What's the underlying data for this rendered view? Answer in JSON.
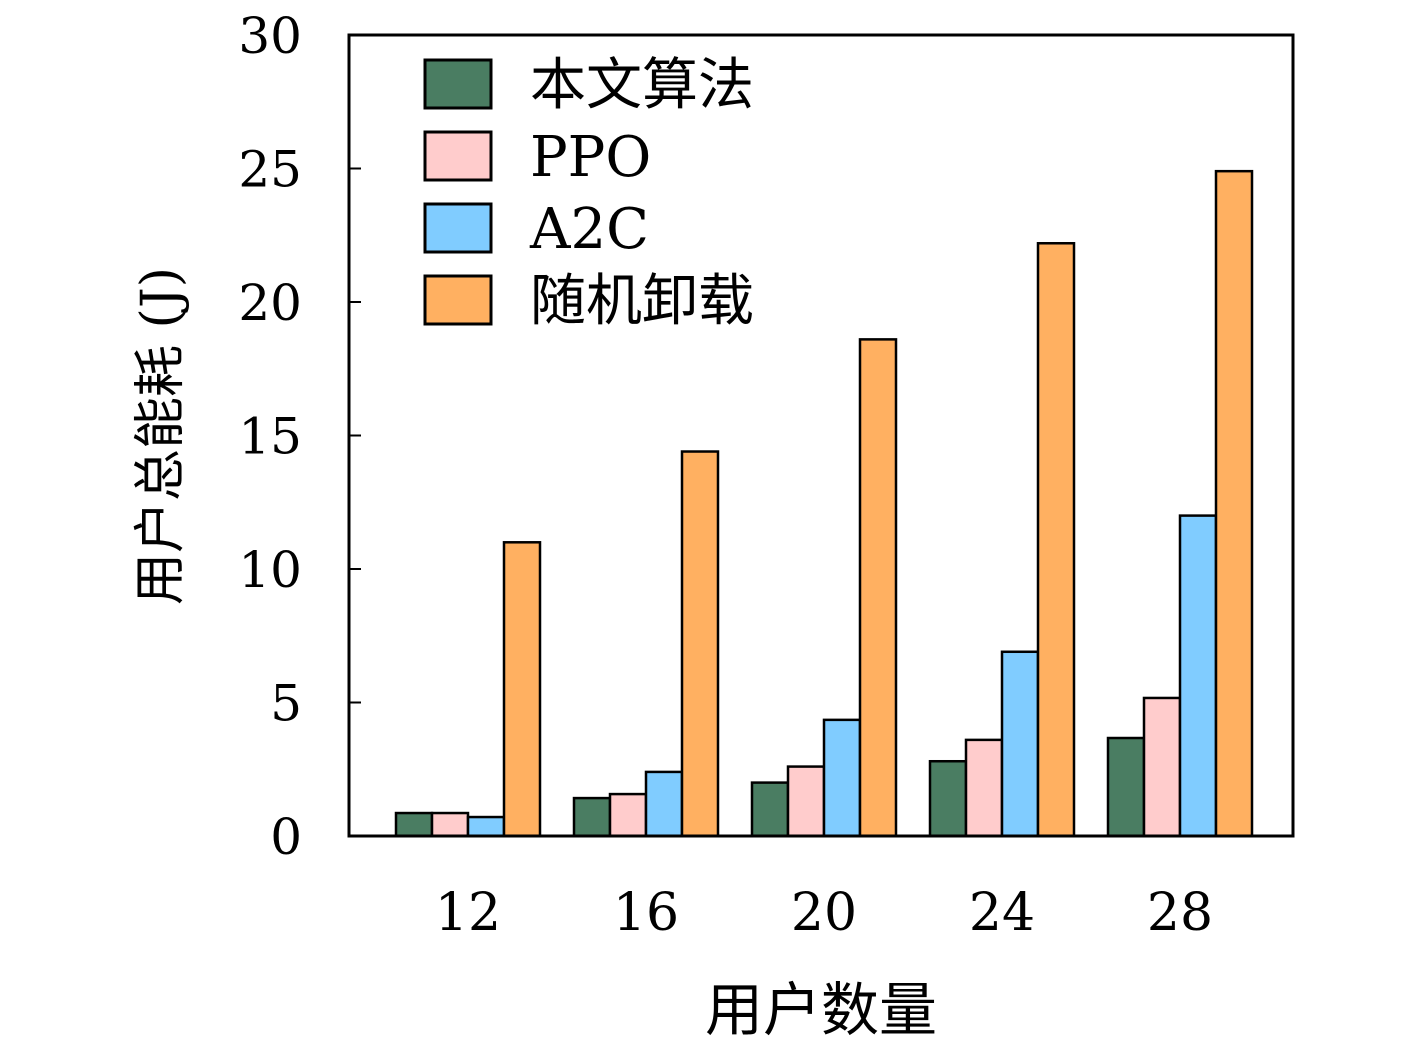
{
  "chart_data": {
    "type": "bar",
    "title": "",
    "xlabel": "用户数量",
    "ylabel": "用户总能耗 (J)",
    "categories": [
      "12",
      "16",
      "20",
      "24",
      "28"
    ],
    "ylim": [
      0,
      30
    ],
    "yticks": [
      0,
      5,
      10,
      15,
      20,
      25,
      30
    ],
    "grid": false,
    "legend_position": "top-left",
    "series": [
      {
        "name": "本文算法",
        "color": "#4a7d62",
        "values": [
          0.86,
          1.42,
          2.0,
          2.8,
          3.67
        ]
      },
      {
        "name": "PPO",
        "color": "#ffcccc",
        "values": [
          0.86,
          1.57,
          2.6,
          3.6,
          5.17
        ]
      },
      {
        "name": "A2C",
        "color": "#80ccff",
        "values": [
          0.71,
          2.4,
          4.35,
          6.9,
          12.0
        ]
      },
      {
        "name": "随机卸载",
        "color": "#ffb061",
        "values": [
          11.0,
          14.4,
          18.6,
          22.2,
          24.9
        ]
      }
    ]
  }
}
